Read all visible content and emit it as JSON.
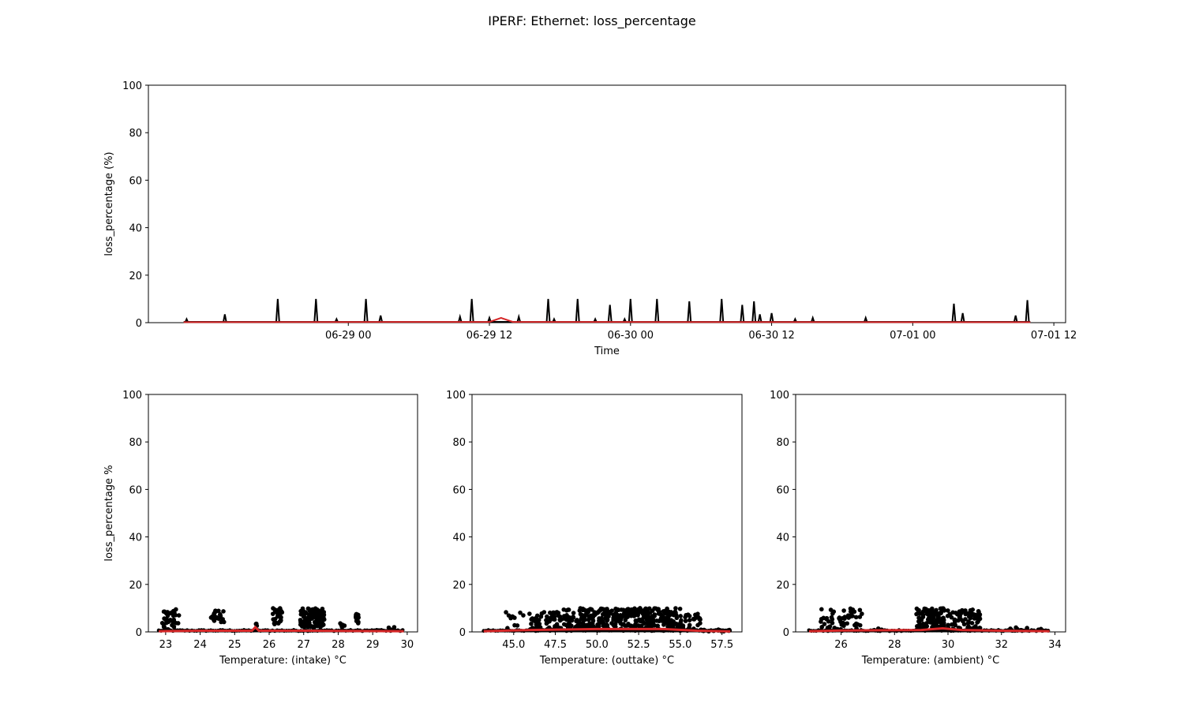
{
  "figure": {
    "title": "IPERF: Ethernet: loss_percentage",
    "colors": {
      "points": "#000000",
      "median": "#d62728",
      "axes": "#000000",
      "background": "#ffffff"
    }
  },
  "chart_data": [
    {
      "type": "line",
      "id": "time",
      "xlabel": "Time",
      "ylabel": "loss_percentage (%)",
      "xlim": [
        "06-28 07:00",
        "07-01 13:00"
      ],
      "ylim": [
        0,
        100
      ],
      "x_tick_labels": [
        "06-29 00",
        "06-29 12",
        "06-30 00",
        "06-30 12",
        "07-01 00",
        "07-01 12"
      ],
      "x_tick_values": [
        "06-29 00:00",
        "06-29 12:00",
        "06-30 00:00",
        "06-30 12:00",
        "07-01 00:00",
        "07-01 12:00"
      ],
      "y_tick_labels": [
        "0",
        "20",
        "40",
        "60",
        "80",
        "100"
      ],
      "series": [
        {
          "style": "black line",
          "x": [
            "06-28 10:15",
            "06-28 13:30",
            "06-28 18:00",
            "06-28 21:15",
            "06-28 23:00",
            "06-29 01:30",
            "06-29 02:45",
            "06-29 09:30",
            "06-29 10:30",
            "06-29 12:00",
            "06-29 14:30",
            "06-29 17:00",
            "06-29 17:30",
            "06-29 19:30",
            "06-29 21:00",
            "06-29 22:15",
            "06-29 23:30",
            "06-30 00:00",
            "06-30 02:15",
            "06-30 05:00",
            "06-30 07:45",
            "06-30 09:30",
            "06-30 10:30",
            "06-30 11:00",
            "06-30 12:00",
            "06-30 14:00",
            "06-30 15:30",
            "06-30 20:00",
            "07-01 03:30",
            "07-01 04:15",
            "07-01 08:45",
            "07-01 09:45"
          ],
          "y": [
            1.5,
            3.5,
            10,
            10,
            1.5,
            10,
            3,
            2.5,
            10,
            2,
            2.5,
            10,
            1.5,
            10,
            1.5,
            7.5,
            1.5,
            10,
            10,
            9,
            10,
            7.5,
            9,
            3.5,
            4,
            1.5,
            2,
            2,
            8,
            4,
            3,
            9.5
          ]
        },
        {
          "style": "red line",
          "x": [
            "06-28 10:00",
            "06-29 12:00",
            "06-29 13:00",
            "06-29 14:00",
            "07-01 10:00"
          ],
          "y": [
            0.2,
            0.3,
            2,
            0.3,
            0.2
          ]
        }
      ]
    },
    {
      "type": "scatter",
      "id": "intake",
      "xlabel": "Temperature: (intake) °C",
      "ylabel": "loss_percentage %",
      "xlim": [
        22.5,
        30.3
      ],
      "ylim": [
        0,
        100
      ],
      "x_tick_labels": [
        "23",
        "24",
        "25",
        "26",
        "27",
        "28",
        "29",
        "30"
      ],
      "y_tick_labels": [
        "0",
        "20",
        "40",
        "60",
        "80",
        "100"
      ],
      "x_range": [
        22.8,
        29.9
      ],
      "clusters": [
        {
          "x": [
            22.9,
            23.4
          ],
          "y": [
            1,
            9.5
          ],
          "count": 35
        },
        {
          "x": [
            24.3,
            24.7
          ],
          "y": [
            4,
            9
          ],
          "count": 22
        },
        {
          "x": [
            25.6,
            25.7
          ],
          "y": [
            2,
            3.5
          ],
          "count": 3
        },
        {
          "x": [
            26.1,
            26.4
          ],
          "y": [
            3,
            10
          ],
          "count": 35
        },
        {
          "x": [
            26.9,
            27.6
          ],
          "y": [
            2,
            10
          ],
          "count": 110
        },
        {
          "x": [
            28.0,
            28.2
          ],
          "y": [
            2,
            4
          ],
          "count": 6
        },
        {
          "x": [
            28.5,
            28.6
          ],
          "y": [
            3,
            8
          ],
          "count": 12
        },
        {
          "x": [
            29.0,
            29.7
          ],
          "y": [
            0.5,
            2
          ],
          "count": 5
        }
      ],
      "median_line": {
        "x": [
          22.8,
          24.0,
          25.5,
          25.6,
          25.7,
          27.0,
          29.9
        ],
        "y": [
          0.3,
          0.5,
          0.5,
          2,
          0.5,
          0.5,
          0.3
        ]
      }
    },
    {
      "type": "scatter",
      "id": "outtake",
      "xlabel": "Temperature: (outtake) °C",
      "ylabel": "",
      "xlim": [
        42.5,
        58.7
      ],
      "ylim": [
        0,
        100
      ],
      "x_tick_labels": [
        "45.0",
        "47.5",
        "50.0",
        "52.5",
        "55.0",
        "57.5"
      ],
      "y_tick_labels": [
        "0",
        "20",
        "40",
        "60",
        "80",
        "100"
      ],
      "x_range": [
        43.2,
        58.0
      ],
      "clusters": [
        {
          "x": [
            44.5,
            46.0
          ],
          "y": [
            1,
            8.5
          ],
          "count": 12
        },
        {
          "x": [
            46.0,
            48.0
          ],
          "y": [
            1,
            9
          ],
          "count": 60
        },
        {
          "x": [
            48.0,
            52.0
          ],
          "y": [
            1,
            10
          ],
          "count": 200
        },
        {
          "x": [
            52.0,
            55.0
          ],
          "y": [
            1,
            10
          ],
          "count": 170
        },
        {
          "x": [
            55.0,
            56.2
          ],
          "y": [
            0.5,
            8
          ],
          "count": 30
        },
        {
          "x": [
            56.2,
            58.0
          ],
          "y": [
            0.2,
            1
          ],
          "count": 12
        }
      ],
      "median_line": {
        "x": [
          43.2,
          46.0,
          50.0,
          54.0,
          56.0,
          58.0
        ],
        "y": [
          0.3,
          0.8,
          1.2,
          1.2,
          0.5,
          0.2
        ]
      }
    },
    {
      "type": "scatter",
      "id": "ambient",
      "xlabel": "Temperature: (ambient) °C",
      "ylabel": "",
      "xlim": [
        24.3,
        34.4
      ],
      "ylim": [
        0,
        100
      ],
      "x_tick_labels": [
        "26",
        "28",
        "30",
        "32",
        "34"
      ],
      "y_tick_labels": [
        "0",
        "20",
        "40",
        "60",
        "80",
        "100"
      ],
      "x_range": [
        24.8,
        33.8
      ],
      "clusters": [
        {
          "x": [
            25.2,
            26.8
          ],
          "y": [
            1,
            10
          ],
          "count": 55
        },
        {
          "x": [
            27.2,
            27.6
          ],
          "y": [
            0.5,
            1.5
          ],
          "count": 4
        },
        {
          "x": [
            28.8,
            30.0
          ],
          "y": [
            1,
            10
          ],
          "count": 110
        },
        {
          "x": [
            30.0,
            31.2
          ],
          "y": [
            1,
            9.5
          ],
          "count": 70
        },
        {
          "x": [
            31.8,
            33.6
          ],
          "y": [
            0.3,
            2
          ],
          "count": 12
        }
      ],
      "median_line": {
        "x": [
          24.8,
          26.0,
          29.0,
          29.8,
          30.5,
          32.0,
          33.8
        ],
        "y": [
          0.3,
          0.6,
          0.8,
          1.5,
          0.8,
          0.5,
          0.3
        ]
      }
    }
  ]
}
